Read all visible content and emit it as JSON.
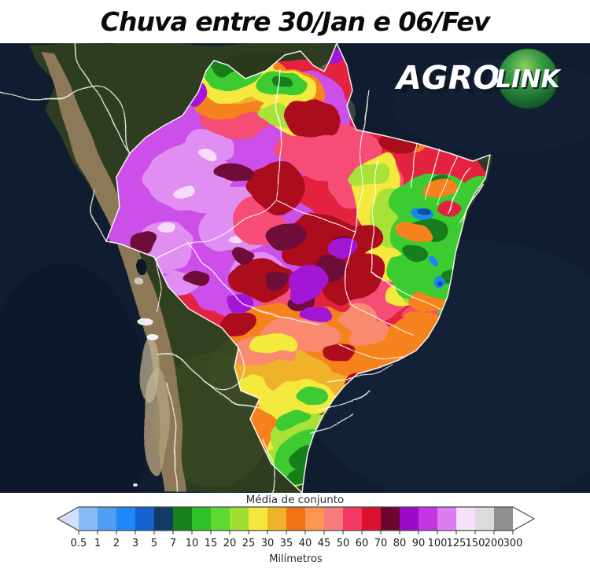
{
  "header": {
    "title": "Chuva entre 30/Jan e 06/Fev"
  },
  "logo": {
    "part1": "AGRO",
    "part2": "LINK",
    "ball_color": "#2e8b3a"
  },
  "map": {
    "ocean_color": "#101d31",
    "land_color": "#2f3c24",
    "andes_color": "#8d7958",
    "border_color": "#ffffff"
  },
  "legend": {
    "title": "Média de conjunto",
    "unit_label": "Milímetros",
    "ticks": [
      "0.5",
      "1",
      "2",
      "3",
      "5",
      "7",
      "10",
      "15",
      "20",
      "25",
      "30",
      "35",
      "40",
      "45",
      "50",
      "60",
      "70",
      "80",
      "90",
      "100",
      "125",
      "150",
      "200",
      "300"
    ],
    "segment_colors": [
      "#87bbf5",
      "#4f9ef2",
      "#1f87fa",
      "#1563cf",
      "#123a64",
      "#15821b",
      "#2cc228",
      "#5fd832",
      "#a0e035",
      "#f2e93c",
      "#efb32b",
      "#f17316",
      "#fa9650",
      "#f87a7a",
      "#f33a64",
      "#da1230",
      "#6b0630",
      "#9c0ac8",
      "#c334e2",
      "#dc7df0",
      "#f7e0fa",
      "#dcdcdc",
      "#8f8f8f"
    ],
    "arrow_left_color": "#cfe0f8",
    "arrow_right_color": "#ffffff"
  }
}
